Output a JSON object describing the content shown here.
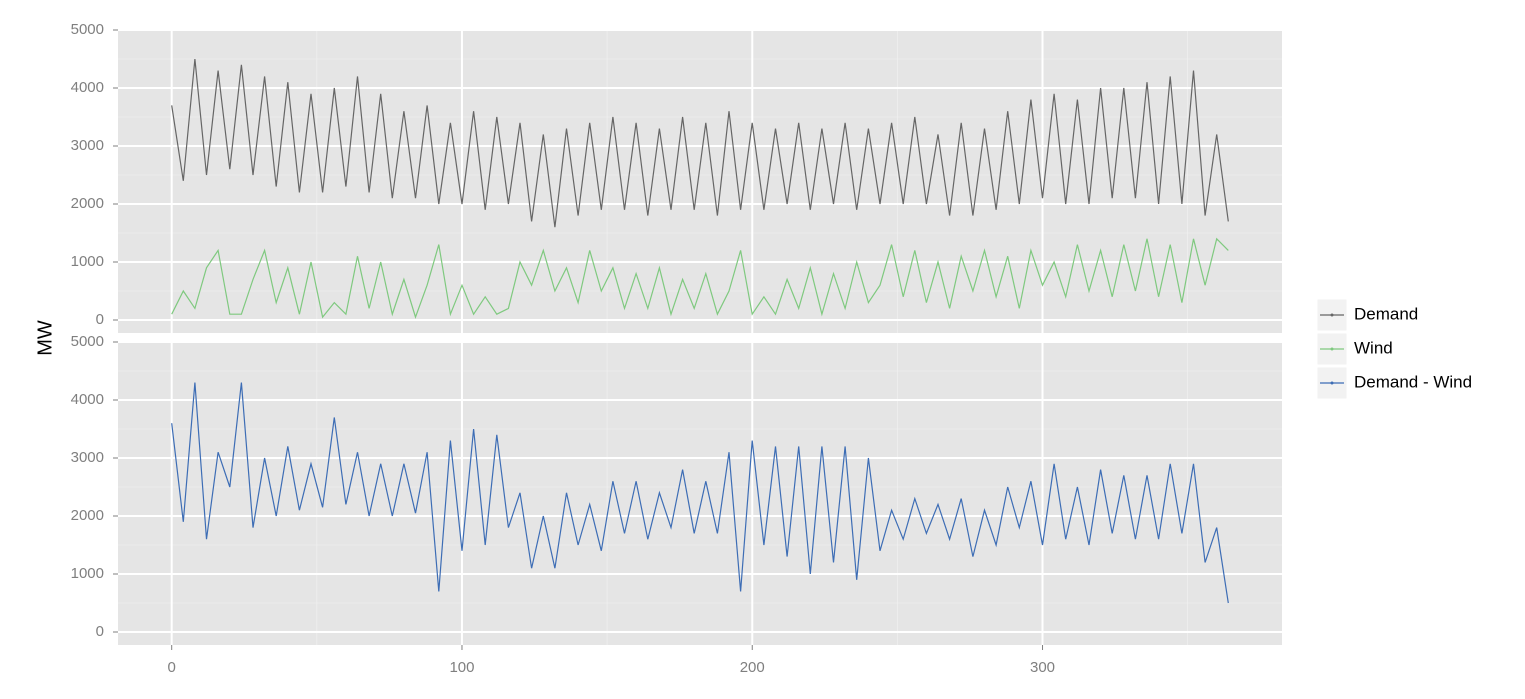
{
  "chart_data": {
    "type": "line",
    "ylabel": "MW",
    "x": [
      0,
      4,
      8,
      12,
      16,
      20,
      24,
      28,
      32,
      36,
      40,
      44,
      48,
      52,
      56,
      60,
      64,
      68,
      72,
      76,
      80,
      84,
      88,
      92,
      96,
      100,
      104,
      108,
      112,
      116,
      120,
      124,
      128,
      132,
      136,
      140,
      144,
      148,
      152,
      156,
      160,
      164,
      168,
      172,
      176,
      180,
      184,
      188,
      192,
      196,
      200,
      204,
      208,
      212,
      216,
      220,
      224,
      228,
      232,
      236,
      240,
      244,
      248,
      252,
      256,
      260,
      264,
      268,
      272,
      276,
      280,
      284,
      288,
      292,
      296,
      300,
      304,
      308,
      312,
      316,
      320,
      324,
      328,
      332,
      336,
      340,
      344,
      348,
      352,
      356,
      360,
      364
    ],
    "xlim": [
      -18.5,
      382.5
    ],
    "xticks": [
      0,
      100,
      200,
      300
    ],
    "xminor": [
      50,
      150,
      250,
      350
    ],
    "ylim": [
      -224,
      5000
    ],
    "yticks": [
      0,
      1000,
      2000,
      3000,
      4000,
      5000
    ],
    "yminor": [
      500,
      1500,
      2500,
      3500,
      4500
    ],
    "grid": true,
    "legend": "right",
    "panels": [
      {
        "series": [
          {
            "name": "Demand",
            "color": "#666666",
            "values": [
              3700,
              2400,
              4500,
              2500,
              4300,
              2600,
              4400,
              2500,
              4200,
              2300,
              4100,
              2200,
              3900,
              2200,
              4000,
              2300,
              4200,
              2200,
              3900,
              2100,
              3600,
              2100,
              3700,
              2000,
              3400,
              2000,
              3600,
              1900,
              3500,
              2000,
              3400,
              1700,
              3200,
              1600,
              3300,
              1800,
              3400,
              1900,
              3500,
              1900,
              3400,
              1800,
              3300,
              1900,
              3500,
              1900,
              3400,
              1800,
              3600,
              1900,
              3400,
              1900,
              3300,
              2000,
              3400,
              1900,
              3300,
              2000,
              3400,
              1900,
              3300,
              2000,
              3400,
              2000,
              3500,
              2000,
              3200,
              1800,
              3400,
              1800,
              3300,
              1900,
              3600,
              2000,
              3800,
              2100,
              3900,
              2000,
              3800,
              2000,
              4000,
              2100,
              4000,
              2100,
              4100,
              2000,
              4200,
              2000,
              4300,
              1800,
              3200,
              1700
            ]
          },
          {
            "name": "Wind",
            "color": "#7fc97f",
            "values": [
              100,
              500,
              200,
              900,
              1200,
              100,
              100,
              700,
              1200,
              300,
              900,
              100,
              1000,
              50,
              300,
              100,
              1100,
              200,
              1000,
              100,
              700,
              50,
              600,
              1300,
              100,
              600,
              100,
              400,
              100,
              200,
              1000,
              600,
              1200,
              500,
              900,
              300,
              1200,
              500,
              900,
              200,
              800,
              200,
              900,
              100,
              700,
              200,
              800,
              100,
              500,
              1200,
              100,
              400,
              100,
              700,
              200,
              900,
              100,
              800,
              200,
              1000,
              300,
              600,
              1300,
              400,
              1200,
              300,
              1000,
              200,
              1100,
              500,
              1200,
              400,
              1100,
              200,
              1200,
              600,
              1000,
              400,
              1300,
              500,
              1200,
              400,
              1300,
              500,
              1400,
              400,
              1300,
              300,
              1400,
              600,
              1400,
              1200
            ]
          }
        ]
      },
      {
        "series": [
          {
            "name": "Demand - Wind",
            "color": "#3d6db5",
            "values": [
              3600,
              1900,
              4300,
              1600,
              3100,
              2500,
              4300,
              1800,
              3000,
              2000,
              3200,
              2100,
              2900,
              2150,
              3700,
              2200,
              3100,
              2000,
              2900,
              2000,
              2900,
              2050,
              3100,
              700,
              3300,
              1400,
              3500,
              1500,
              3400,
              1800,
              2400,
              1100,
              2000,
              1100,
              2400,
              1500,
              2200,
              1400,
              2600,
              1700,
              2600,
              1600,
              2400,
              1800,
              2800,
              1700,
              2600,
              1700,
              3100,
              700,
              3300,
              1500,
              3200,
              1300,
              3200,
              1000,
              3200,
              1200,
              3200,
              900,
              3000,
              1400,
              2100,
              1600,
              2300,
              1700,
              2200,
              1600,
              2300,
              1300,
              2100,
              1500,
              2500,
              1800,
              2600,
              1500,
              2900,
              1600,
              2500,
              1500,
              2800,
              1700,
              2700,
              1600,
              2700,
              1600,
              2900,
              1700,
              2900,
              1200,
              1800,
              500
            ]
          }
        ]
      }
    ]
  }
}
